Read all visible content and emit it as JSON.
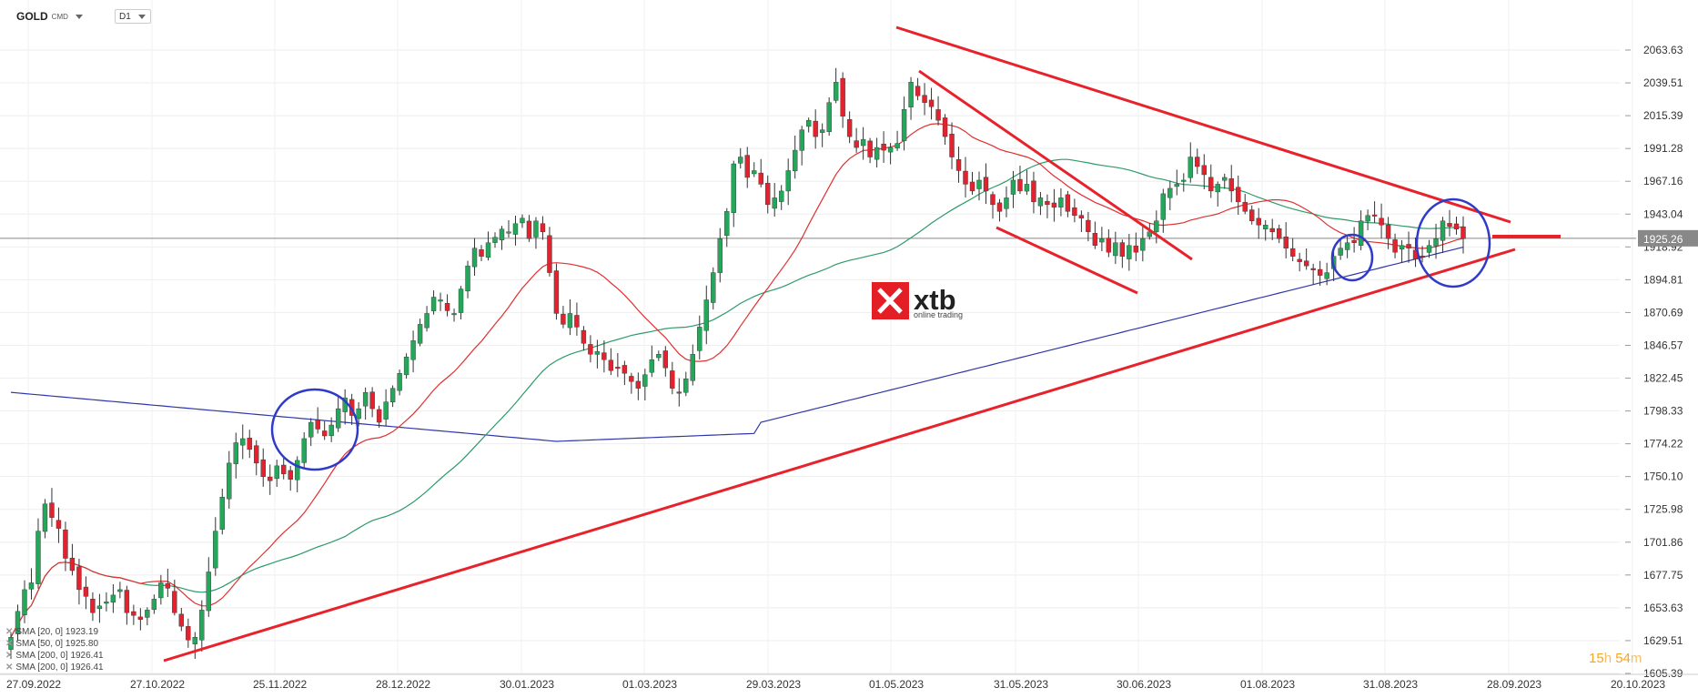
{
  "header": {
    "symbol": "GOLD",
    "symbol_type": "CMD",
    "timeframe": "D1"
  },
  "watermark": {
    "brand": "xtb",
    "tagline": "online trading",
    "color": "#e31e24"
  },
  "timer": {
    "hours": "15",
    "h_unit": "h",
    "minutes": "54",
    "m_unit": "m"
  },
  "indicators": [
    {
      "label": "SMA [20, 0]",
      "value": "1923.19"
    },
    {
      "label": "SMA [50, 0]",
      "value": "1925.80"
    },
    {
      "label": "SMA [200, 0]",
      "value": "1926.41"
    },
    {
      "label": "SMA [200, 0]",
      "value": "1926.41"
    }
  ],
  "chart_data": {
    "type": "candlestick",
    "instrument": "GOLD",
    "timeframe": "D1",
    "current_price": 1925.26,
    "y_ticks": [
      2063.63,
      2039.51,
      2015.39,
      1991.28,
      1967.16,
      1943.04,
      1918.92,
      1894.81,
      1870.69,
      1846.57,
      1822.45,
      1798.33,
      1774.22,
      1750.1,
      1725.98,
      1701.86,
      1677.75,
      1653.63,
      1629.51,
      1605.39
    ],
    "x_ticks": [
      "27.09.2022",
      "27.10.2022",
      "25.11.2022",
      "28.12.2022",
      "30.01.2023",
      "01.03.2023",
      "29.03.2023",
      "01.05.2023",
      "31.05.2023",
      "30.06.2023",
      "01.08.2023",
      "31.08.2023",
      "28.09.2023",
      "20.10.2023"
    ],
    "ylim": [
      1605.39,
      2075
    ],
    "close_series": [
      1632,
      1651,
      1667,
      1672,
      1710,
      1730,
      1720,
      1712,
      1690,
      1681,
      1667,
      1662,
      1650,
      1655,
      1658,
      1663,
      1667,
      1650,
      1648,
      1645,
      1652,
      1660,
      1672,
      1668,
      1650,
      1640,
      1630,
      1632,
      1652,
      1680,
      1710,
      1735,
      1760,
      1775,
      1778,
      1770,
      1760,
      1750,
      1747,
      1758,
      1752,
      1748,
      1762,
      1778,
      1790,
      1785,
      1780,
      1788,
      1800,
      1808,
      1795,
      1800,
      1812,
      1800,
      1790,
      1805,
      1815,
      1826,
      1838,
      1850,
      1862,
      1870,
      1882,
      1880,
      1872,
      1870,
      1888,
      1905,
      1918,
      1912,
      1922,
      1926,
      1932,
      1930,
      1936,
      1940,
      1925,
      1938,
      1930,
      1900,
      1870,
      1862,
      1870,
      1860,
      1848,
      1840,
      1842,
      1836,
      1828,
      1830,
      1826,
      1820,
      1815,
      1825,
      1836,
      1840,
      1830,
      1815,
      1812,
      1822,
      1840,
      1860,
      1880,
      1900,
      1925,
      1945,
      1980,
      1985,
      1970,
      1975,
      1965,
      1950,
      1955,
      1960,
      1975,
      1990,
      2005,
      2012,
      2000,
      2005,
      2025,
      2040,
      2015,
      2000,
      1992,
      1998,
      1985,
      1992,
      1990,
      1992,
      1995,
      2020,
      2040,
      2030,
      2025,
      2022,
      2012,
      2000,
      1985,
      1975,
      1965,
      1960,
      1968,
      1960,
      1950,
      1945,
      1955,
      1968,
      1960,
      1965,
      1952,
      1955,
      1950,
      1948,
      1955,
      1945,
      1942,
      1940,
      1930,
      1920,
      1925,
      1915,
      1922,
      1912,
      1920,
      1915,
      1925,
      1930,
      1938,
      1958,
      1962,
      1965,
      1968,
      1985,
      1978,
      1972,
      1960,
      1965,
      1970,
      1960,
      1952,
      1945,
      1938,
      1935,
      1935,
      1930,
      1925,
      1918,
      1912,
      1908,
      1905,
      1902,
      1898,
      1900,
      1912,
      1918,
      1922,
      1922,
      1938,
      1942,
      1942,
      1935,
      1925,
      1915,
      1920,
      1918,
      1910,
      1912,
      1920,
      1925,
      1938,
      1934,
      1932,
      1925
    ]
  },
  "right_axis": {
    "price_tag": "1925.26"
  }
}
